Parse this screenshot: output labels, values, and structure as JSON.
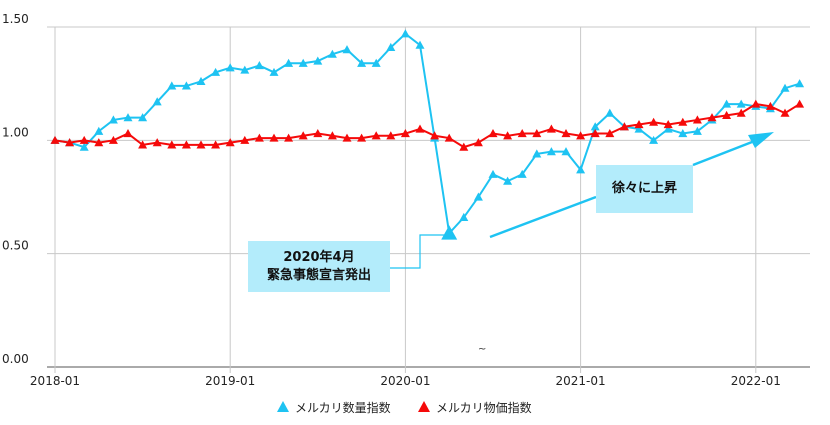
{
  "chart_data": {
    "type": "line",
    "title": "",
    "xlabel": "",
    "ylabel": "",
    "ylim": [
      0,
      1.5
    ],
    "yticks": [
      "0.00",
      "0.50",
      "1.00",
      "1.50"
    ],
    "xticks": [
      "2018-01",
      "2019-01",
      "2020-01",
      "2021-01",
      "2022-01"
    ],
    "x_start": "2018-01",
    "x_end": "2022-04",
    "grid": true,
    "legend_position": "bottom",
    "series": [
      {
        "name": "メルカリ数量指数",
        "color": "#1ec3f2",
        "values": [
          1.0,
          0.99,
          0.97,
          1.04,
          1.09,
          1.1,
          1.1,
          1.17,
          1.24,
          1.24,
          1.26,
          1.3,
          1.32,
          1.31,
          1.33,
          1.3,
          1.34,
          1.34,
          1.35,
          1.38,
          1.4,
          1.34,
          1.34,
          1.41,
          1.47,
          1.42,
          1.01,
          0.59,
          0.66,
          0.75,
          0.85,
          0.82,
          0.85,
          0.94,
          0.95,
          0.95,
          0.87,
          1.06,
          1.12,
          1.06,
          1.05,
          1.0,
          1.05,
          1.03,
          1.04,
          1.09,
          1.16,
          1.16,
          1.15,
          1.14,
          1.23,
          1.25
        ]
      },
      {
        "name": "メルカリ物価指数",
        "color": "#f50a0a",
        "values": [
          1.0,
          0.99,
          1.0,
          0.99,
          1.0,
          1.03,
          0.98,
          0.99,
          0.98,
          0.98,
          0.98,
          0.98,
          0.99,
          1.0,
          1.01,
          1.01,
          1.01,
          1.02,
          1.03,
          1.02,
          1.01,
          1.01,
          1.02,
          1.02,
          1.03,
          1.05,
          1.02,
          1.01,
          0.97,
          0.99,
          1.03,
          1.02,
          1.03,
          1.03,
          1.05,
          1.03,
          1.02,
          1.03,
          1.03,
          1.06,
          1.07,
          1.08,
          1.07,
          1.08,
          1.09,
          1.1,
          1.11,
          1.12,
          1.16,
          1.15,
          1.12,
          1.16
        ]
      }
    ],
    "annotations": [
      {
        "line1": "2020年4月",
        "line2": "緊急事態宣言発出"
      },
      {
        "text": "徐々に上昇"
      }
    ],
    "stray_mark": "~"
  }
}
